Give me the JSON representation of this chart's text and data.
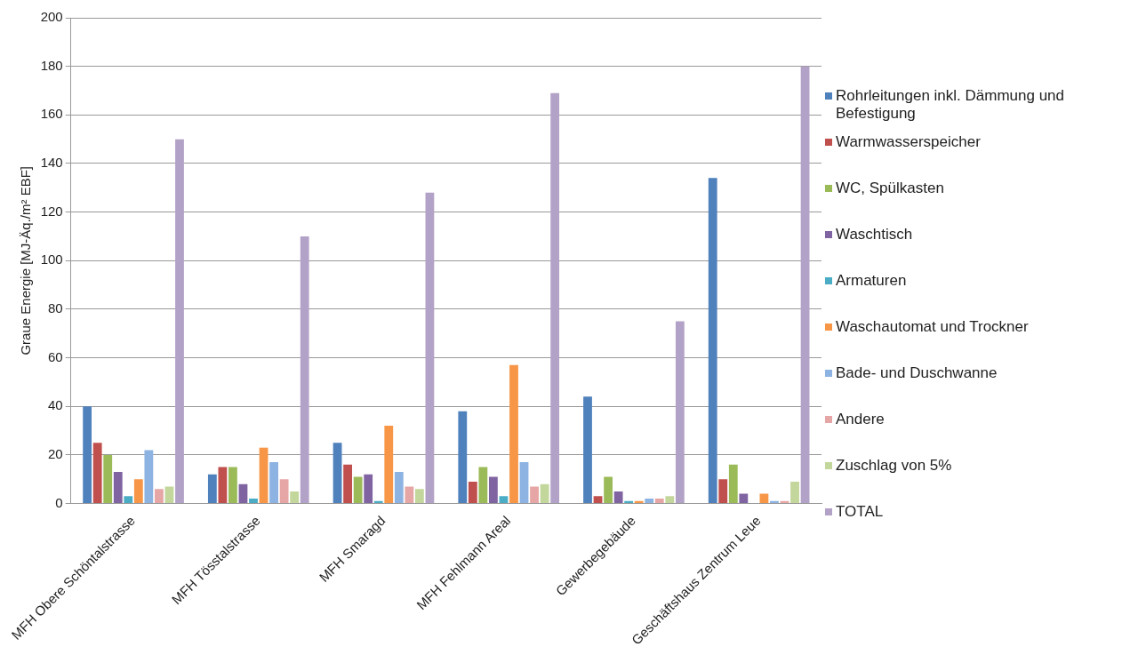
{
  "chart_data": {
    "type": "bar",
    "ylabel": "Graue Energie [MJ-Äq./m² EBF]",
    "categories": [
      "MFH Obere Schöntalstrasse",
      "MFH Tösstalstrasse",
      "MFH Smaragd",
      "MFH Fehlmann Areal",
      "Gewerbegebäude",
      "Geschäftshaus Zentrum Leue"
    ],
    "series": [
      {
        "name": "Rohrleitungen inkl. Dämmung und Befestigung",
        "color": "#4f81bd",
        "values": [
          40,
          12,
          25,
          38,
          44,
          134
        ]
      },
      {
        "name": "Warmwasserspeicher",
        "color": "#c0504d",
        "values": [
          25,
          15,
          16,
          9,
          3,
          10
        ]
      },
      {
        "name": "WC, Spülkasten",
        "color": "#9bbb59",
        "values": [
          20,
          15,
          11,
          15,
          11,
          16
        ]
      },
      {
        "name": "Waschtisch",
        "color": "#8064a2",
        "values": [
          13,
          8,
          12,
          11,
          5,
          4
        ]
      },
      {
        "name": "Armaturen",
        "color": "#4bacc6",
        "values": [
          3,
          2,
          1,
          3,
          1,
          0
        ]
      },
      {
        "name": "Waschautomat und Trockner",
        "color": "#f79646",
        "values": [
          10,
          23,
          32,
          57,
          1,
          4
        ]
      },
      {
        "name": "Bade- und Duschwanne",
        "color": "#8db3e2",
        "values": [
          22,
          17,
          13,
          17,
          2,
          1
        ]
      },
      {
        "name": "Andere",
        "color": "#e6a6a5",
        "values": [
          6,
          10,
          7,
          7,
          2,
          1
        ]
      },
      {
        "name": "Zuschlag von 5%",
        "color": "#c3d69b",
        "values": [
          7,
          5,
          6,
          8,
          3,
          9
        ]
      },
      {
        "name": "TOTAL",
        "color": "#b3a2c7",
        "values": [
          150,
          110,
          128,
          169,
          75,
          180
        ]
      }
    ],
    "ylim": [
      0,
      200
    ],
    "yticks": [
      0,
      20,
      40,
      60,
      80,
      100,
      120,
      140,
      160,
      180,
      200
    ],
    "grid": "y",
    "legend": "right"
  }
}
